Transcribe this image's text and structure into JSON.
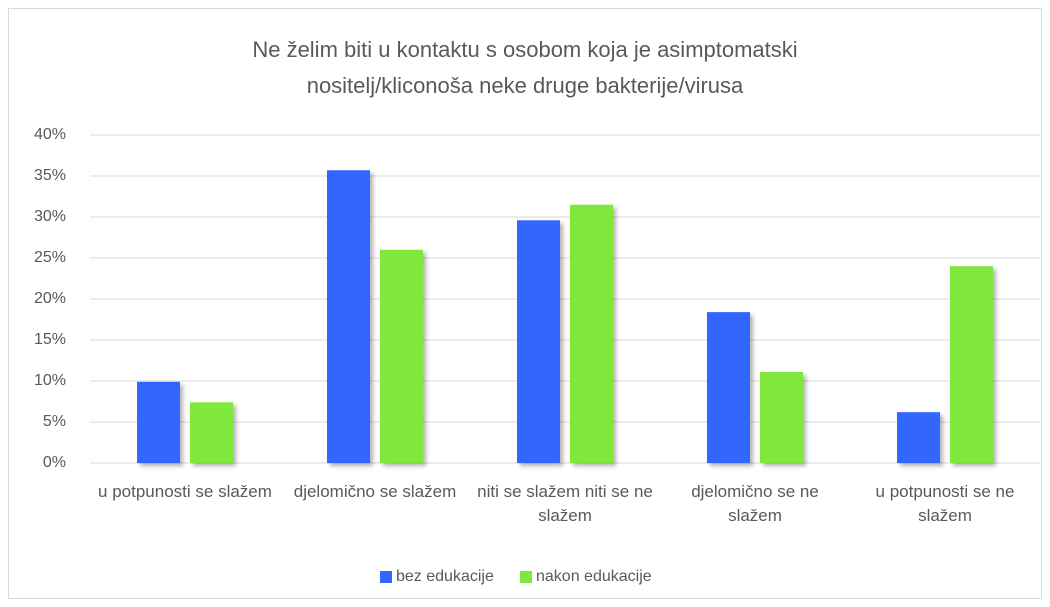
{
  "chart_data": {
    "type": "bar",
    "title": "Ne želim biti u kontaktu s osobom koja je asimptomatski nositelj/kliconoša neke druge bakterije/virusa",
    "categories": [
      "u potpunosti se slažem",
      "djelomično se slažem",
      "niti se slažem niti se ne slažem",
      "djelomično se ne slažem",
      "u potpunosti se ne slažem"
    ],
    "series": [
      {
        "name": "bez edukacije",
        "color": "#3366ff",
        "values": [
          9.9,
          35.7,
          29.6,
          18.4,
          6.2
        ]
      },
      {
        "name": "nakon edukacije",
        "color": "#80e83c",
        "values": [
          7.4,
          26.0,
          31.5,
          11.1,
          24.0
        ]
      }
    ],
    "ylim": [
      0,
      40
    ],
    "yticks": [
      {
        "value": 0,
        "label": "0%"
      },
      {
        "value": 5,
        "label": "5%"
      },
      {
        "value": 10,
        "label": "10%"
      },
      {
        "value": 15,
        "label": "15%"
      },
      {
        "value": 20,
        "label": "20%"
      },
      {
        "value": 25,
        "label": "25%"
      },
      {
        "value": 30,
        "label": "30%"
      },
      {
        "value": 35,
        "label": "35%"
      },
      {
        "value": 40,
        "label": "40%"
      }
    ],
    "grid": true,
    "legend": "bottom"
  }
}
